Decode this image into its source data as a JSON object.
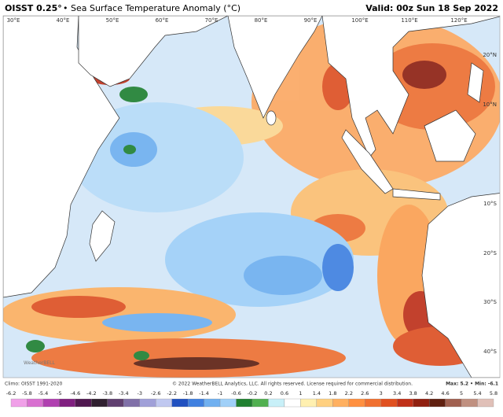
{
  "header": {
    "product": "OISST 0.25°",
    "title": "• Sea Surface Temperature Anomaly (°C)",
    "valid": "Valid: 00z Sun 18 Sep 2022"
  },
  "lon_labels": [
    "30°E",
    "40°E",
    "50°E",
    "60°E",
    "70°E",
    "80°E",
    "90°E",
    "100°E",
    "110°E",
    "120°E"
  ],
  "lat_labels": [
    "20°N",
    "10°N",
    "10°S",
    "20°S",
    "30°S",
    "40°S"
  ],
  "watermark": "WeatherBELL",
  "footer": {
    "climo": "Climo: OISST 1991-2020",
    "copyright": "© 2022 WeatherBELL Analytics, LLC. All rights reserved. License required for commercial distribution.",
    "maxmin": "Max: 5.2 • Min: -6.1"
  },
  "colorbar": {
    "labels": [
      "-6.2",
      "-5.8",
      "-5.4",
      "-5",
      "-4.6",
      "-4.2",
      "-3.8",
      "-3.4",
      "-3",
      "-2.6",
      "-2.2",
      "-1.8",
      "-1.4",
      "-1",
      "-0.6",
      "-0.2",
      "0.2",
      "0.6",
      "1",
      "1.4",
      "1.8",
      "2.2",
      "2.6",
      "3",
      "3.4",
      "3.8",
      "4.2",
      "4.6",
      "5",
      "5.4",
      "5.8"
    ],
    "colors": [
      "#f0a0e8",
      "#d870d0",
      "#b040b0",
      "#802080",
      "#501850",
      "#302030",
      "#604070",
      "#8070a8",
      "#a0a0d8",
      "#c0c8f0",
      "#2050c0",
      "#4080e0",
      "#70b0f0",
      "#a0d0f8",
      "#208030",
      "#50b050",
      "#c8f0f8",
      "#ffffff",
      "#fff0b0",
      "#ffd080",
      "#ffb060",
      "#ff9040",
      "#f07030",
      "#e05020",
      "#c03018",
      "#902010",
      "#602010",
      "#a06050",
      "#c09080",
      "#e0c0b8"
    ]
  }
}
